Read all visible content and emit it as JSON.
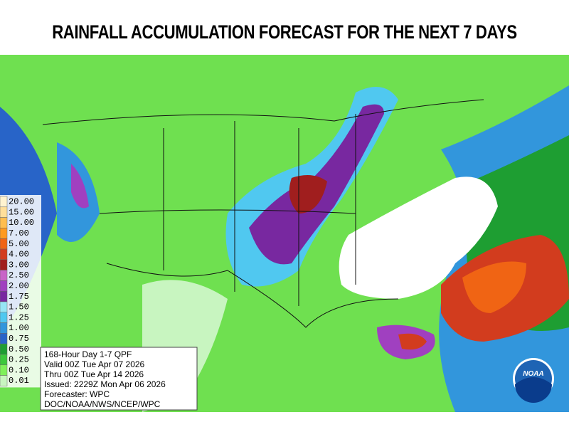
{
  "header": {
    "title": "RAINFALL ACCUMULATION FORECAST FOR THE NEXT 7 DAYS"
  },
  "legend": {
    "items": [
      {
        "label": "20.00",
        "color": "#fff3d0"
      },
      {
        "label": "15.00",
        "color": "#ffdf9a"
      },
      {
        "label": "10.00",
        "color": "#ffbe50"
      },
      {
        "label": "7.00",
        "color": "#ff9a20"
      },
      {
        "label": "5.00",
        "color": "#f06414"
      },
      {
        "label": "4.00",
        "color": "#d23c1e"
      },
      {
        "label": "3.00",
        "color": "#a01e1e"
      },
      {
        "label": "2.50",
        "color": "#c864c8"
      },
      {
        "label": "2.00",
        "color": "#a040c0"
      },
      {
        "label": "1.75",
        "color": "#7828a0"
      },
      {
        "label": "1.50",
        "color": "#96e6f5"
      },
      {
        "label": "1.25",
        "color": "#50c8f0"
      },
      {
        "label": "1.00",
        "color": "#3296dc"
      },
      {
        "label": "0.75",
        "color": "#2864c8"
      },
      {
        "label": "0.50",
        "color": "#1e9e32"
      },
      {
        "label": "0.25",
        "color": "#3cc83c"
      },
      {
        "label": "0.10",
        "color": "#7ff05a"
      },
      {
        "label": "0.01",
        "color": "#c8f5c0"
      }
    ]
  },
  "info_box": {
    "lines": [
      "168-Hour Day 1-7 QPF",
      "Valid 00Z Tue Apr 07 2026",
      "Thru 00Z Tue Apr 14 2026",
      "Issued: 2229Z Mon Apr 06 2026",
      "Forecaster: WPC",
      "DOC/NOAA/NWS/NCEP/WPC"
    ]
  },
  "logo": {
    "text": "NOAA"
  }
}
